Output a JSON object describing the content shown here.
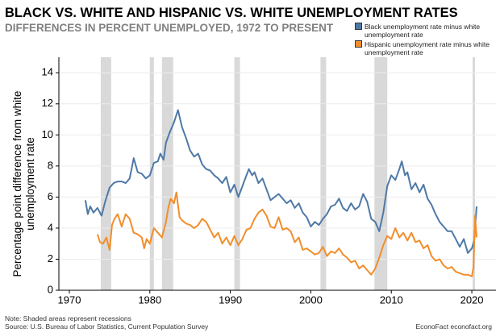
{
  "chart_data": {
    "type": "line",
    "title": "BLACK VS. WHITE AND HISPANIC VS. WHITE UNEMPLOYMENT RATES",
    "subtitle": "DIFFERENCES IN PERCENT UNEMPLOYED, 1972 TO PRESENT",
    "y_label": "Percentage point difference from white unemployment rate",
    "note": "Note: Shaded areas represent recessions",
    "source": "Source: U.S. Bureau of Labor Statistics, Current Population Survey",
    "credit": "EconoFact  econofact.org",
    "xlim": [
      1968.7,
      2023
    ],
    "xticks": [
      1970,
      1980,
      1990,
      2000,
      2010,
      2020
    ],
    "ylim": [
      0,
      15
    ],
    "yticks": [
      0,
      2,
      4,
      6,
      8,
      10,
      12,
      14
    ],
    "grid": true,
    "legend": "top-right",
    "recession_spans": [
      [
        1973.9,
        1975.2
      ],
      [
        1980.0,
        1980.5
      ],
      [
        1981.5,
        1982.9
      ],
      [
        1990.5,
        1991.2
      ],
      [
        2001.2,
        2001.9
      ],
      [
        2007.9,
        2009.5
      ],
      [
        2020.1,
        2020.4
      ]
    ],
    "recession_color": "#d9d9d9",
    "series": [
      {
        "name": "Black unemployment rate minus white unemployment rate",
        "color": "#4e79a7",
        "x": [
          1972.0,
          1972.3,
          1972.6,
          1973.0,
          1973.5,
          1974.0,
          1974.5,
          1975.0,
          1975.5,
          1976.0,
          1976.5,
          1977.0,
          1977.5,
          1978.0,
          1978.5,
          1979.0,
          1979.5,
          1980.0,
          1980.5,
          1981.0,
          1981.3,
          1981.7,
          1982.0,
          1982.5,
          1983.0,
          1983.5,
          1984.0,
          1984.5,
          1985.0,
          1985.5,
          1986.0,
          1986.5,
          1987.0,
          1987.5,
          1988.0,
          1988.5,
          1989.0,
          1989.5,
          1990.0,
          1990.5,
          1991.0,
          1991.5,
          1992.0,
          1992.3,
          1992.7,
          1993.0,
          1993.5,
          1994.0,
          1994.5,
          1995.0,
          1995.5,
          1996.0,
          1996.5,
          1997.0,
          1997.5,
          1998.0,
          1998.5,
          1999.0,
          1999.5,
          2000.0,
          2000.5,
          2001.0,
          2001.5,
          2002.0,
          2002.5,
          2003.0,
          2003.5,
          2004.0,
          2004.5,
          2005.0,
          2005.5,
          2006.0,
          2006.5,
          2007.0,
          2007.5,
          2008.0,
          2008.5,
          2009.0,
          2009.5,
          2010.0,
          2010.5,
          2011.0,
          2011.3,
          2011.7,
          2012.0,
          2012.5,
          2013.0,
          2013.5,
          2014.0,
          2014.5,
          2015.0,
          2015.5,
          2016.0,
          2016.5,
          2017.0,
          2017.5,
          2018.0,
          2018.5,
          2019.0,
          2019.5,
          2020.0,
          2020.3,
          2020.6
        ],
        "values": [
          5.8,
          4.9,
          5.4,
          5.0,
          5.3,
          4.8,
          5.8,
          6.6,
          6.9,
          7.0,
          7.0,
          6.9,
          7.2,
          8.5,
          7.6,
          7.5,
          7.2,
          7.4,
          8.2,
          8.3,
          8.8,
          8.4,
          9.5,
          10.2,
          10.8,
          11.6,
          10.5,
          9.8,
          9.0,
          8.6,
          8.8,
          8.1,
          7.8,
          7.7,
          7.4,
          7.2,
          6.9,
          7.3,
          6.3,
          6.8,
          6.0,
          6.7,
          7.4,
          7.8,
          7.4,
          7.6,
          6.9,
          7.2,
          6.5,
          5.8,
          6.0,
          6.2,
          5.9,
          5.6,
          5.8,
          5.3,
          5.6,
          5.0,
          4.7,
          4.1,
          4.4,
          4.2,
          4.6,
          4.9,
          5.4,
          5.5,
          5.9,
          5.3,
          5.1,
          5.6,
          5.2,
          5.4,
          6.2,
          5.7,
          4.6,
          4.4,
          3.8,
          5.0,
          6.7,
          7.4,
          7.1,
          7.8,
          8.3,
          7.4,
          7.6,
          6.5,
          6.9,
          6.3,
          6.8,
          5.9,
          5.5,
          4.9,
          4.4,
          4.1,
          3.8,
          3.8,
          3.3,
          2.8,
          3.3,
          2.4,
          2.7,
          3.2,
          5.4
        ]
      },
      {
        "name": "Hispanic unemployment rate minus white unemployment rate",
        "color": "#f28e2b",
        "x": [
          1973.5,
          1973.8,
          1974.2,
          1974.6,
          1975.0,
          1975.3,
          1975.6,
          1976.0,
          1976.5,
          1977.0,
          1977.5,
          1978.0,
          1978.5,
          1979.0,
          1979.3,
          1979.6,
          1980.0,
          1980.5,
          1981.0,
          1981.5,
          1982.0,
          1982.3,
          1982.6,
          1983.0,
          1983.3,
          1983.7,
          1984.0,
          1984.5,
          1985.0,
          1985.5,
          1986.0,
          1986.5,
          1987.0,
          1987.5,
          1988.0,
          1988.5,
          1989.0,
          1989.5,
          1990.0,
          1990.5,
          1991.0,
          1991.5,
          1992.0,
          1992.5,
          1993.0,
          1993.5,
          1994.0,
          1994.5,
          1995.0,
          1995.5,
          1996.0,
          1996.5,
          1997.0,
          1997.5,
          1998.0,
          1998.5,
          1999.0,
          1999.5,
          2000.0,
          2000.5,
          2001.0,
          2001.5,
          2002.0,
          2002.5,
          2003.0,
          2003.5,
          2004.0,
          2004.5,
          2005.0,
          2005.5,
          2006.0,
          2006.5,
          2007.0,
          2007.5,
          2008.0,
          2008.5,
          2009.0,
          2009.5,
          2010.0,
          2010.5,
          2011.0,
          2011.5,
          2012.0,
          2012.5,
          2013.0,
          2013.5,
          2014.0,
          2014.5,
          2015.0,
          2015.5,
          2016.0,
          2016.5,
          2017.0,
          2017.5,
          2018.0,
          2018.5,
          2019.0,
          2019.5,
          2020.0,
          2020.2,
          2020.4,
          2020.6
        ],
        "values": [
          3.6,
          3.1,
          3.0,
          3.4,
          2.6,
          4.2,
          4.6,
          4.9,
          4.1,
          4.9,
          4.6,
          3.7,
          3.6,
          3.4,
          2.7,
          3.3,
          3.0,
          4.0,
          3.7,
          3.4,
          4.4,
          5.3,
          5.9,
          5.6,
          6.3,
          4.7,
          4.5,
          4.3,
          4.2,
          4.0,
          4.2,
          4.6,
          4.4,
          3.9,
          3.4,
          3.7,
          3.0,
          3.4,
          2.9,
          3.5,
          2.9,
          3.3,
          3.9,
          4.0,
          4.6,
          5.0,
          5.2,
          4.8,
          4.1,
          4.0,
          4.7,
          3.9,
          4.0,
          3.8,
          3.1,
          3.4,
          2.6,
          2.7,
          2.5,
          2.3,
          2.4,
          2.8,
          2.2,
          2.5,
          2.4,
          2.7,
          2.3,
          2.1,
          1.8,
          1.9,
          1.4,
          1.6,
          1.3,
          1.0,
          1.4,
          2.1,
          2.9,
          3.5,
          3.3,
          4.0,
          3.4,
          3.7,
          3.2,
          3.7,
          3.1,
          3.2,
          2.7,
          2.9,
          2.2,
          1.9,
          2.0,
          1.6,
          1.4,
          1.5,
          1.2,
          1.1,
          1.0,
          1.0,
          0.9,
          1.5,
          4.8,
          3.4
        ]
      }
    ]
  }
}
